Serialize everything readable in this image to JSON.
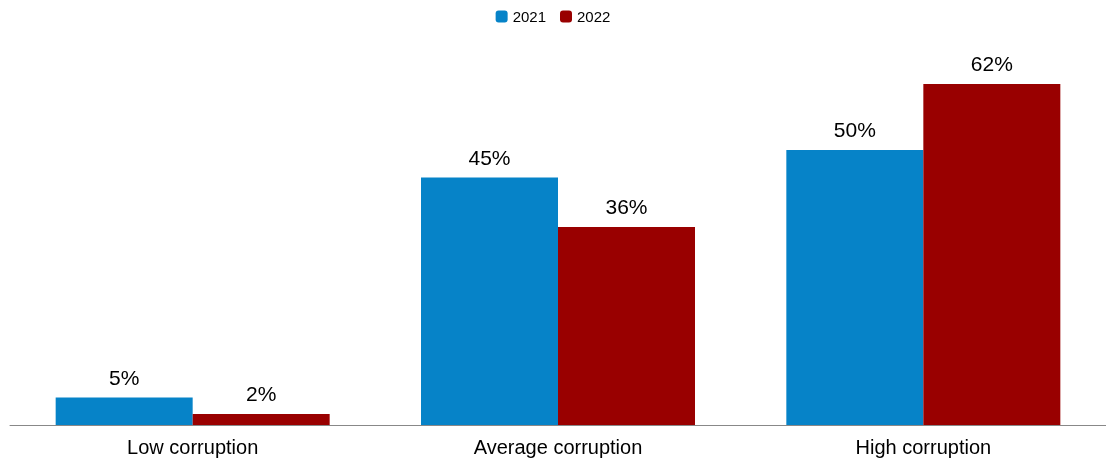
{
  "chart_data": {
    "type": "bar",
    "categories": [
      "Low corruption",
      "Average corruption",
      "High corruption"
    ],
    "series": [
      {
        "name": "2021",
        "color": "#0683c8",
        "values": [
          5,
          45,
          50
        ],
        "value_labels": [
          "5%",
          "45%",
          "50%"
        ]
      },
      {
        "name": "2022",
        "color": "#990000",
        "values": [
          2,
          36,
          62
        ],
        "value_labels": [
          "2%",
          "36%",
          "62%"
        ]
      }
    ],
    "legend": "top"
  }
}
